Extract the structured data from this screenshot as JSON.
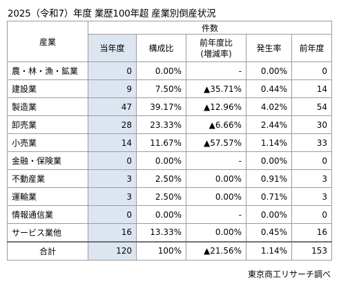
{
  "title": "2025（令和7）年度 業歴100年超 産業別倒産状況",
  "table": {
    "industry_header": "産業",
    "group_header": "件数",
    "columns": {
      "current": "当年度",
      "share": "構成比",
      "yoy_line1": "前年度比",
      "yoy_line2": "(増減率)",
      "rate": "発生率",
      "prev": "前年度"
    },
    "rows": [
      {
        "industry": "農・林・漁・鉱業",
        "current": "0",
        "share": "0.00%",
        "yoy": "-",
        "rate": "0.00%",
        "prev": "0"
      },
      {
        "industry": "建設業",
        "current": "9",
        "share": "7.50%",
        "yoy": "▲35.71%",
        "rate": "0.44%",
        "prev": "14"
      },
      {
        "industry": "製造業",
        "current": "47",
        "share": "39.17%",
        "yoy": "▲12.96%",
        "rate": "4.02%",
        "prev": "54"
      },
      {
        "industry": "卸売業",
        "current": "28",
        "share": "23.33%",
        "yoy": "▲6.66%",
        "rate": "2.44%",
        "prev": "30"
      },
      {
        "industry": "小売業",
        "current": "14",
        "share": "11.67%",
        "yoy": "▲57.57%",
        "rate": "1.14%",
        "prev": "33"
      },
      {
        "industry": "金融・保険業",
        "current": "0",
        "share": "0.00%",
        "yoy": "-",
        "rate": "0.00%",
        "prev": "0"
      },
      {
        "industry": "不動産業",
        "current": "3",
        "share": "2.50%",
        "yoy": "0.00%",
        "rate": "0.91%",
        "prev": "3"
      },
      {
        "industry": "運輸業",
        "current": "3",
        "share": "2.50%",
        "yoy": "0.00%",
        "rate": "0.71%",
        "prev": "3"
      },
      {
        "industry": "情報通信業",
        "current": "0",
        "share": "0.00%",
        "yoy": "-",
        "rate": "0.00%",
        "prev": "0"
      },
      {
        "industry": "サービス業他",
        "current": "16",
        "share": "13.33%",
        "yoy": "0.00%",
        "rate": "0.45%",
        "prev": "16"
      }
    ],
    "total": {
      "industry": "合計",
      "current": "120",
      "share": "100%",
      "yoy": "▲21.56%",
      "rate": "1.14%",
      "prev": "153"
    }
  },
  "source": "東京商工リサーチ調べ",
  "colors": {
    "highlight_column": "#dce6f1",
    "grid_line": "#9a9a9a"
  }
}
